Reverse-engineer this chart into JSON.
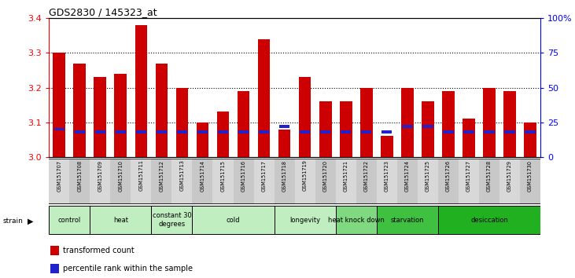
{
  "title": "GDS2830 / 145323_at",
  "samples": [
    "GSM151707",
    "GSM151708",
    "GSM151709",
    "GSM151710",
    "GSM151711",
    "GSM151712",
    "GSM151713",
    "GSM151714",
    "GSM151715",
    "GSM151716",
    "GSM151717",
    "GSM151718",
    "GSM151719",
    "GSM151720",
    "GSM151721",
    "GSM151722",
    "GSM151723",
    "GSM151724",
    "GSM151725",
    "GSM151726",
    "GSM151727",
    "GSM151728",
    "GSM151729",
    "GSM151730"
  ],
  "red_values": [
    3.3,
    3.27,
    3.23,
    3.24,
    3.38,
    3.27,
    3.2,
    3.1,
    3.13,
    3.19,
    3.34,
    3.08,
    3.23,
    3.16,
    3.16,
    3.2,
    3.06,
    3.2,
    3.16,
    3.19,
    3.11,
    3.2,
    3.19,
    3.1
  ],
  "blue_values": [
    20,
    18,
    18,
    18,
    18,
    18,
    18,
    18,
    18,
    18,
    18,
    22,
    18,
    18,
    18,
    18,
    18,
    22,
    22,
    18,
    18,
    18,
    18,
    18
  ],
  "groups": [
    {
      "label": "control",
      "start": 0,
      "end": 2,
      "color": "#c0eec0"
    },
    {
      "label": "heat",
      "start": 2,
      "end": 5,
      "color": "#c0eec0"
    },
    {
      "label": "constant 30\ndegrees",
      "start": 5,
      "end": 7,
      "color": "#c0eec0"
    },
    {
      "label": "cold",
      "start": 7,
      "end": 11,
      "color": "#c0eec0"
    },
    {
      "label": "longevity",
      "start": 11,
      "end": 14,
      "color": "#c0eec0"
    },
    {
      "label": "heat knock down",
      "start": 14,
      "end": 16,
      "color": "#80d880"
    },
    {
      "label": "starvation",
      "start": 16,
      "end": 19,
      "color": "#40c040"
    },
    {
      "label": "desiccation",
      "start": 19,
      "end": 24,
      "color": "#20b020"
    }
  ],
  "ylim_left": [
    3.0,
    3.4
  ],
  "ylim_right": [
    0,
    100
  ],
  "yticks_left": [
    3.0,
    3.1,
    3.2,
    3.3,
    3.4
  ],
  "yticks_right": [
    0,
    25,
    50,
    75,
    100
  ],
  "bar_color": "#cc0000",
  "blue_bar_color": "#2222cc",
  "bg_color": "#ffffff"
}
